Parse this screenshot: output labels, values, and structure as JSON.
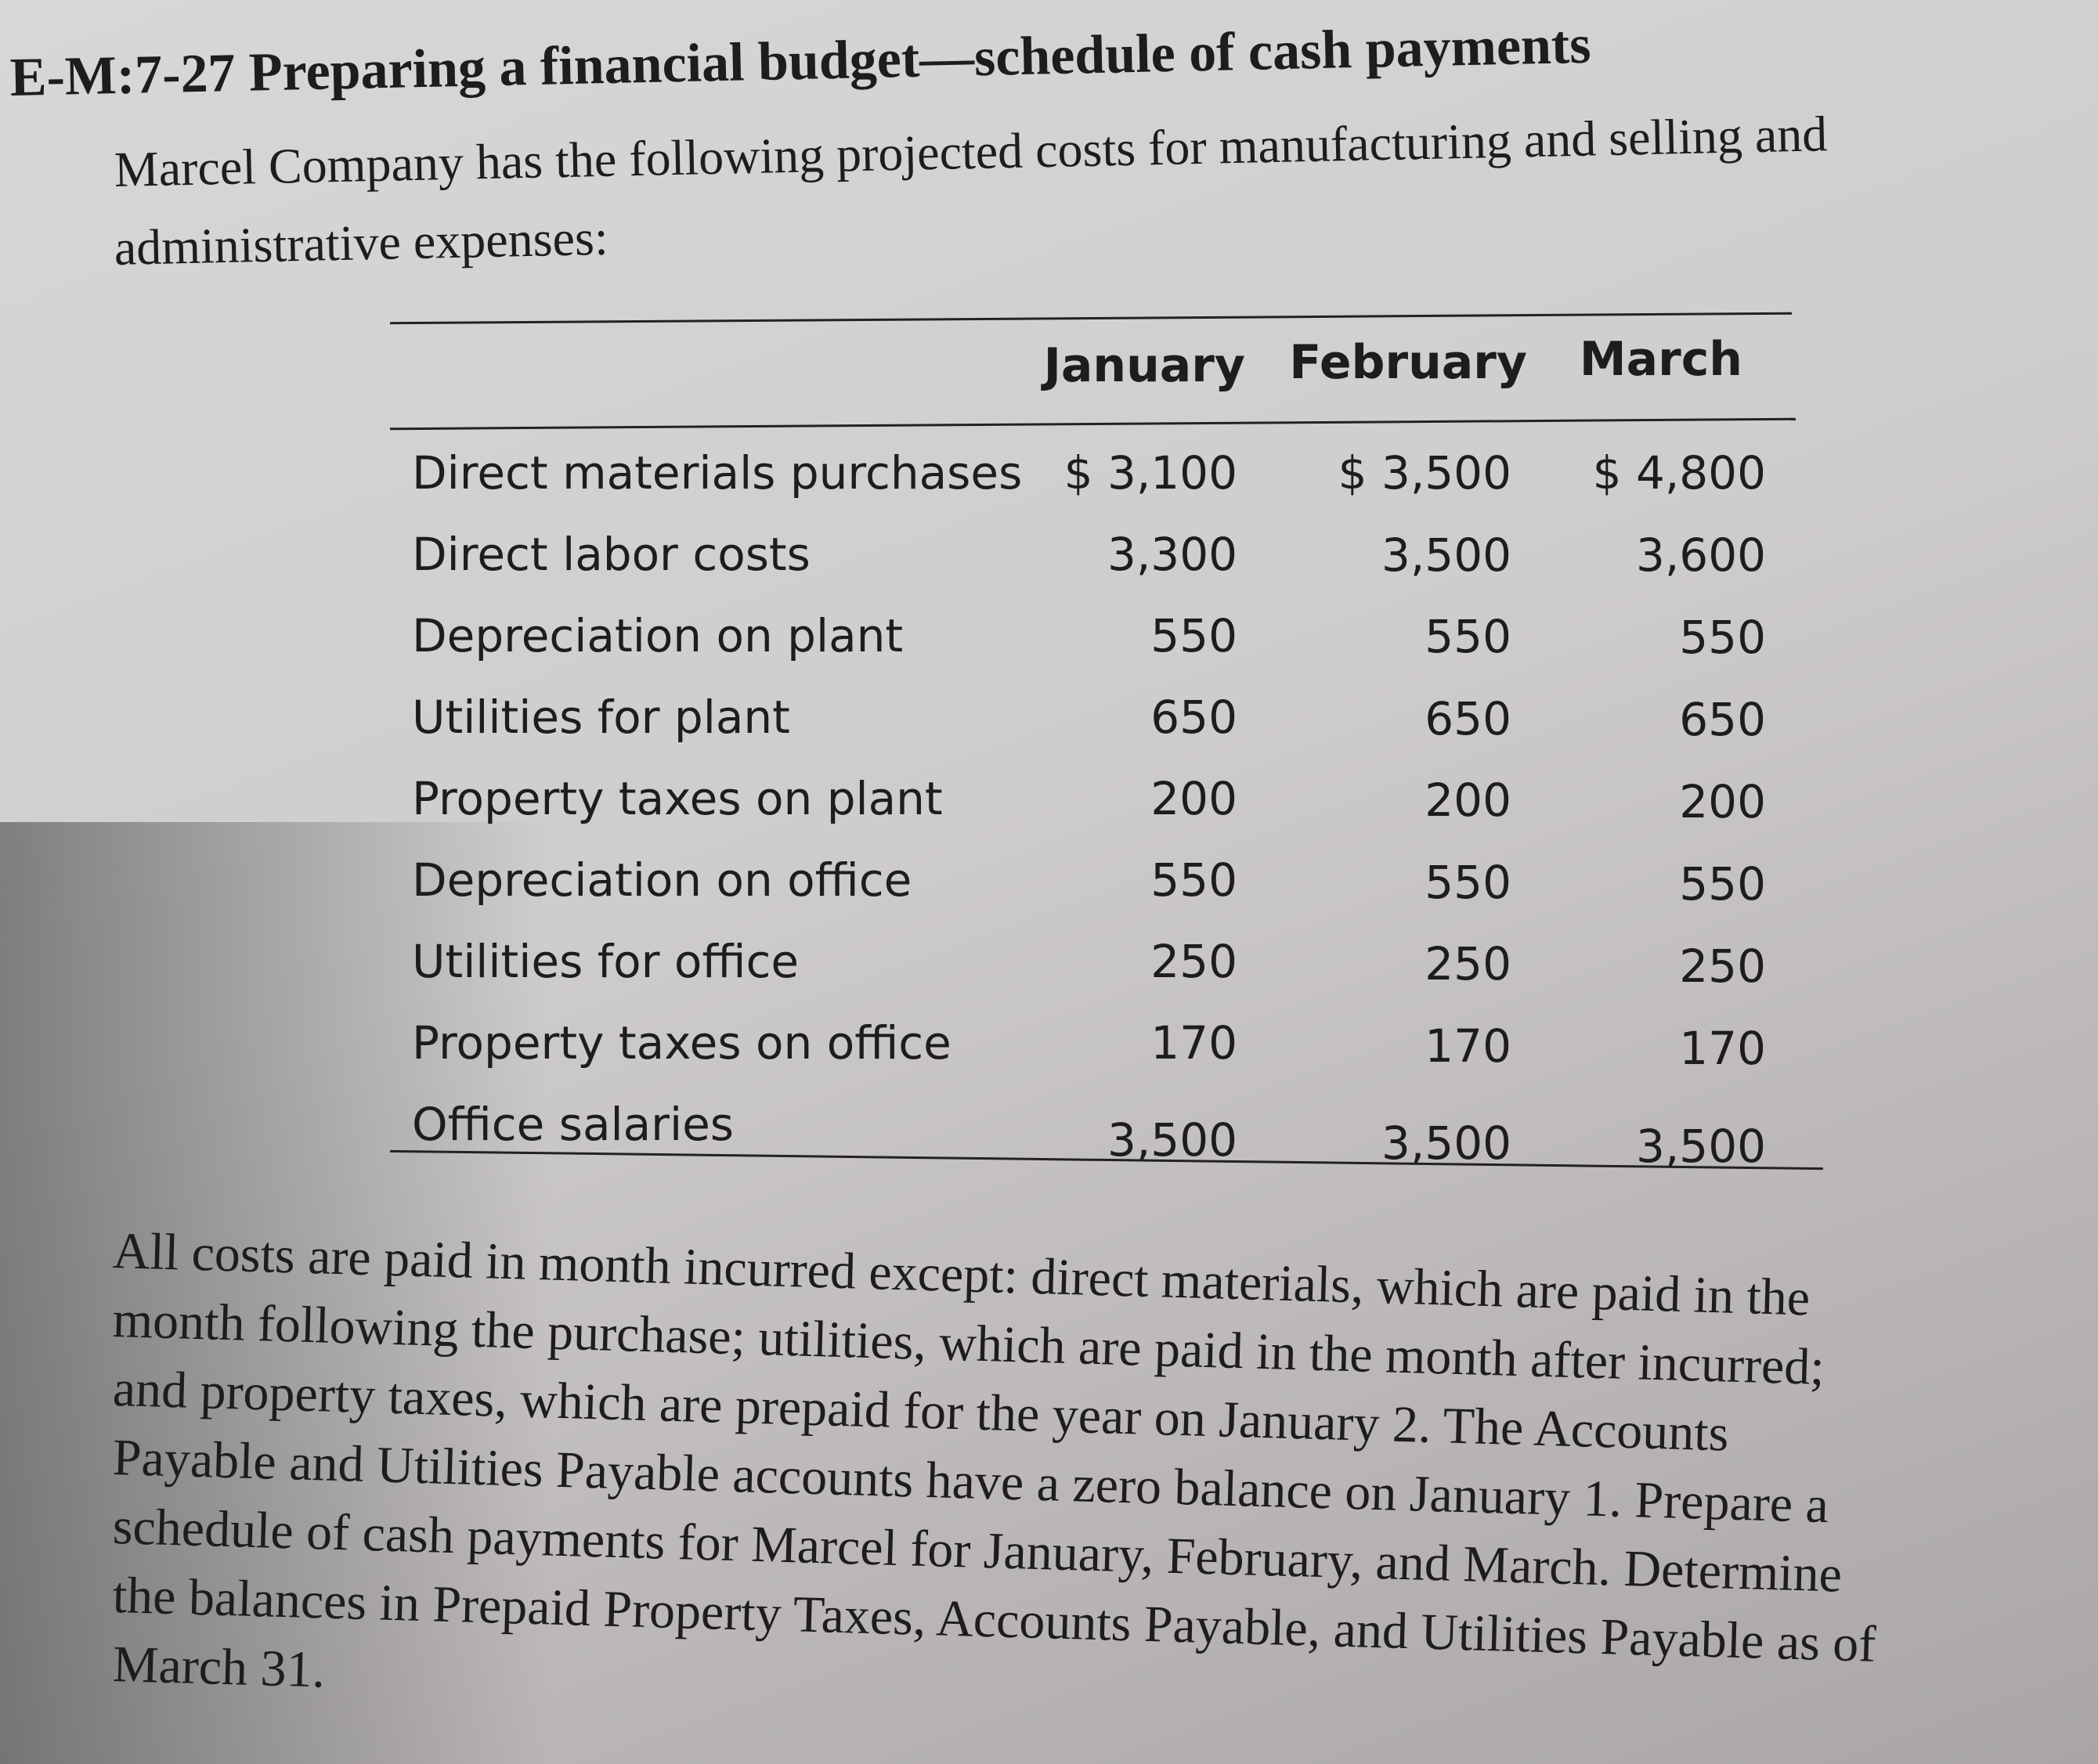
{
  "title": "E-M:7-27  Preparing a financial budget—schedule of cash payments",
  "intro_lines": [
    "Marcel Company has the following projected costs for manufacturing and selling and",
    "administrative expenses:"
  ],
  "table": {
    "columns": [
      "January",
      "February",
      "March"
    ],
    "rows": [
      {
        "label": "Direct materials purchases",
        "values": [
          "$ 3,100",
          "$ 3,500",
          "$ 4,800"
        ]
      },
      {
        "label": "Direct labor costs",
        "values": [
          "3,300",
          "3,500",
          "3,600"
        ]
      },
      {
        "label": "Depreciation on plant",
        "values": [
          "550",
          "550",
          "550"
        ]
      },
      {
        "label": "Utilities for plant",
        "values": [
          "650",
          "650",
          "650"
        ]
      },
      {
        "label": "Property taxes on plant",
        "values": [
          "200",
          "200",
          "200"
        ]
      },
      {
        "label": "Depreciation on office",
        "values": [
          "550",
          "550",
          "550"
        ]
      },
      {
        "label": "Utilities for office",
        "values": [
          "250",
          "250",
          "250"
        ]
      },
      {
        "label": "Property taxes on office",
        "values": [
          "170",
          "170",
          "170"
        ]
      },
      {
        "label": "Office salaries",
        "values": [
          "3,500",
          "3,500",
          "3,500"
        ]
      }
    ]
  },
  "body_lines": [
    "All costs are paid in month incurred except: direct materials, which are paid in the",
    "month following the purchase; utilities, which are paid in the month after incurred;",
    "and property taxes, which are prepaid for the year on January 2. The Accounts",
    "Payable and Utilities Payable accounts have a zero balance on January 1. Prepare a",
    "schedule of cash payments for Marcel for January, February, and March. Determine",
    "the balances in Prepaid Property Taxes, Accounts Payable, and Utilities Payable as of",
    "March 31."
  ]
}
